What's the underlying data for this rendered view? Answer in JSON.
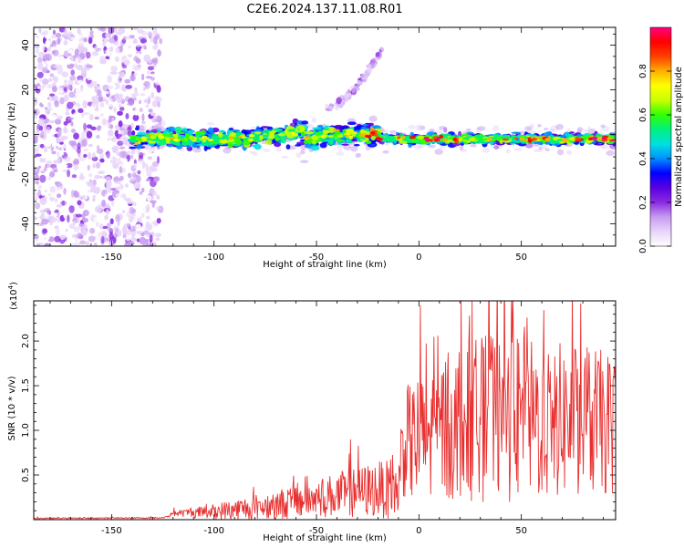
{
  "figure_title": "C2E6.2024.137.11.08.R01",
  "chart_data": [
    {
      "type": "heatmap",
      "title": "C2E6.2024.137.11.08.R01",
      "xlabel": "Height of straight line (km)",
      "ylabel": "Frequency (Hz)",
      "xlim": [
        -188,
        96
      ],
      "ylim": [
        -50,
        48
      ],
      "x_ticks": [
        -150,
        -100,
        -50,
        0,
        50
      ],
      "y_ticks": [
        -40,
        -20,
        0,
        20,
        40
      ],
      "colorbar": {
        "label": "Normalized spectral amplitude",
        "range": [
          0.0,
          1.0
        ],
        "ticks": [
          0.0,
          0.2,
          0.4,
          0.6,
          0.8
        ],
        "tick_labels": [
          "0.0",
          "0.2",
          "0.4",
          "0.6",
          "0.8"
        ],
        "colormap": [
          "#ffffff",
          "#e8d4fa",
          "#c79cf0",
          "#8a2be2",
          "#5b00e0",
          "#0000ff",
          "#0090ff",
          "#00e0e0",
          "#00f080",
          "#30ff00",
          "#c8ff00",
          "#ffff00",
          "#ffb000",
          "#ff4000",
          "#ff0000",
          "#ff0080"
        ]
      },
      "features": [
        {
          "name": "noise region",
          "x_range": [
            -188,
            -126
          ],
          "amplitude_range": [
            0.02,
            0.2
          ]
        },
        {
          "name": "main band",
          "x_range": [
            -140,
            96
          ],
          "freq_center_hz": -2,
          "amplitude_range": [
            0.25,
            1.0
          ]
        },
        {
          "name": "upper arc",
          "x_range": [
            -45,
            -18
          ],
          "freq_range_hz": [
            12,
            38
          ],
          "amplitude_range": [
            0.05,
            0.2
          ]
        }
      ]
    },
    {
      "type": "line",
      "xlabel": "Height of straight line (km)",
      "ylabel": "SNR (10 * v/v)",
      "multiplier_label": "(x10",
      "multiplier_exp": "4",
      "multiplier_close": ")",
      "xlim": [
        -188,
        96
      ],
      "ylim": [
        0,
        24500
      ],
      "x_ticks": [
        -150,
        -100,
        -50,
        0,
        50
      ],
      "y_ticks": [
        5000,
        10000,
        15000,
        20000
      ],
      "y_tick_labels": [
        "0.5",
        "1.0",
        "1.5",
        "2.0"
      ],
      "color": "#e83030",
      "envelope": [
        {
          "x": -188,
          "mean": 150,
          "spread": 60
        },
        {
          "x": -125,
          "mean": 200,
          "spread": 80
        },
        {
          "x": -119,
          "mean": 700,
          "spread": 300
        },
        {
          "x": -100,
          "mean": 900,
          "spread": 900
        },
        {
          "x": -80,
          "mean": 1400,
          "spread": 1400
        },
        {
          "x": -60,
          "mean": 2000,
          "spread": 1900
        },
        {
          "x": -40,
          "mean": 2800,
          "spread": 2500
        },
        {
          "x": -20,
          "mean": 3400,
          "spread": 3200
        },
        {
          "x": -10,
          "mean": 3300,
          "spread": 3200
        },
        {
          "x": -8,
          "mean": 8500,
          "spread": 6000
        },
        {
          "x": 0,
          "mean": 8800,
          "spread": 7500
        },
        {
          "x": 20,
          "mean": 11000,
          "spread": 9000
        },
        {
          "x": 40,
          "mean": 11500,
          "spread": 9500
        },
        {
          "x": 60,
          "mean": 11000,
          "spread": 9000
        },
        {
          "x": 80,
          "mean": 11200,
          "spread": 8500
        },
        {
          "x": 96,
          "mean": 10500,
          "spread": 8000
        }
      ],
      "peak": {
        "x": 20.5,
        "y": 24500
      }
    }
  ]
}
